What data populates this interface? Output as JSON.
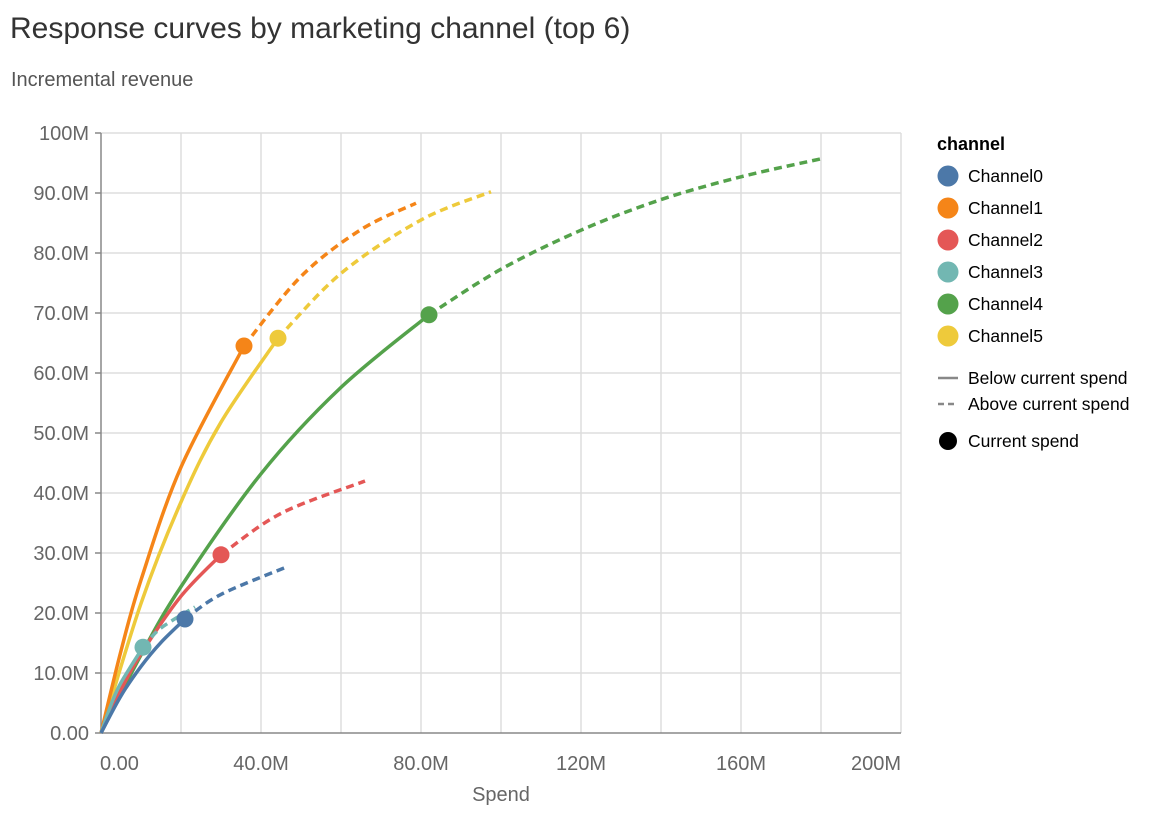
{
  "chart_data": {
    "type": "line",
    "title": "Response curves by marketing channel (top 6)",
    "subtitle": "Incremental revenue",
    "xlabel": "Spend",
    "ylabel": "",
    "xlim": [
      0,
      200000000
    ],
    "ylim": [
      0,
      100000000
    ],
    "grid": true,
    "x_tick_values": [
      0,
      40000000,
      80000000,
      120000000,
      160000000,
      200000000
    ],
    "x_tick_labels": [
      "0.00",
      "40.0M",
      "80.0M",
      "120M",
      "160M",
      "200M"
    ],
    "y_tick_values": [
      0,
      10000000,
      20000000,
      30000000,
      40000000,
      50000000,
      60000000,
      70000000,
      80000000,
      90000000,
      100000000
    ],
    "y_tick_labels": [
      "0.00",
      "10.0M",
      "20.0M",
      "30.0M",
      "40.0M",
      "50.0M",
      "60.0M",
      "70.0M",
      "80.0M",
      "90.0M",
      "100M"
    ],
    "legend": {
      "title": "channel",
      "placement": "right",
      "line_styles": [
        {
          "label": "Below current spend",
          "style": "solid"
        },
        {
          "label": "Above current spend",
          "style": "dashed"
        }
      ],
      "marker_label": "Current spend"
    },
    "series": [
      {
        "name": "Channel0",
        "color": "#4c78a8",
        "current_spend": [
          21000000,
          19000000
        ],
        "points": [
          [
            0,
            0
          ],
          [
            5000000,
            6200000
          ],
          [
            10000000,
            11100000
          ],
          [
            15000000,
            15100000
          ],
          [
            21000000,
            19000000
          ],
          [
            30000000,
            23100000
          ],
          [
            46500000,
            27700000
          ]
        ]
      },
      {
        "name": "Channel1",
        "color": "#f58518",
        "current_spend": [
          35750000,
          64500000
        ],
        "points": [
          [
            0,
            0
          ],
          [
            5000000,
            13700000
          ],
          [
            10000000,
            25500000
          ],
          [
            20000000,
            44300000
          ],
          [
            35750000,
            64500000
          ],
          [
            50000000,
            76100000
          ],
          [
            65000000,
            83900000
          ],
          [
            78750000,
            88300000
          ]
        ]
      },
      {
        "name": "Channel2",
        "color": "#e45756",
        "current_spend": [
          30000000,
          29700000
        ],
        "points": [
          [
            0,
            0
          ],
          [
            5000000,
            7200000
          ],
          [
            10000000,
            13200000
          ],
          [
            20000000,
            22800000
          ],
          [
            30000000,
            29700000
          ],
          [
            45000000,
            36600000
          ],
          [
            66000000,
            42000000
          ]
        ]
      },
      {
        "name": "Channel3",
        "color": "#72b7b2",
        "current_spend": [
          10500000,
          14300000
        ],
        "points": [
          [
            0,
            0
          ],
          [
            2500000,
            4700000
          ],
          [
            5000000,
            8400000
          ],
          [
            10500000,
            14300000
          ],
          [
            15000000,
            17500000
          ],
          [
            23500000,
            21000000
          ]
        ]
      },
      {
        "name": "Channel4",
        "color": "#54a24b",
        "current_spend": [
          82000000,
          69700000
        ],
        "points": [
          [
            0,
            0
          ],
          [
            10000000,
            13000000
          ],
          [
            20000000,
            24400000
          ],
          [
            40000000,
            43200000
          ],
          [
            60000000,
            57600000
          ],
          [
            82000000,
            69700000
          ],
          [
            100000000,
            77300000
          ],
          [
            120000000,
            83800000
          ],
          [
            140000000,
            88900000
          ],
          [
            160000000,
            92700000
          ],
          [
            180000000,
            95700000
          ]
        ]
      },
      {
        "name": "Channel5",
        "color": "#eeca3b",
        "current_spend": [
          44250000,
          65800000
        ],
        "points": [
          [
            0,
            0
          ],
          [
            10000000,
            21600000
          ],
          [
            20000000,
            38500000
          ],
          [
            30000000,
            51800000
          ],
          [
            44250000,
            65800000
          ],
          [
            60000000,
            76600000
          ],
          [
            80000000,
            85500000
          ],
          [
            97500000,
            90200000
          ]
        ]
      }
    ]
  }
}
